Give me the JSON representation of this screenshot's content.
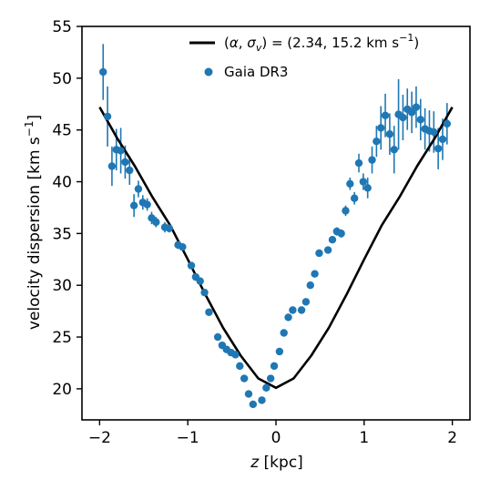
{
  "chart_data": {
    "type": "scatter",
    "xlabel_italic": "z",
    "xlabel_rest": " [kpc]",
    "ylabel_main": "velocity dispersion  [km s",
    "ylabel_sup": "−1",
    "ylabel_close": "]",
    "xlim": [
      -2.2,
      2.2
    ],
    "ylim": [
      17,
      55
    ],
    "xticks": [
      -2,
      -1,
      0,
      1,
      2
    ],
    "xtick_labels": [
      "−2",
      "−1",
      "0",
      "1",
      "2"
    ],
    "yticks": [
      20,
      25,
      30,
      35,
      40,
      45,
      50,
      55
    ],
    "ytick_labels": [
      "20",
      "25",
      "30",
      "35",
      "40",
      "45",
      "50",
      "55"
    ],
    "grid": false,
    "legend_position": "top-right",
    "colors": {
      "points": "#1f77b4",
      "model": "#000000"
    },
    "series": [
      {
        "name": "Gaia DR3",
        "kind": "points_with_errorbars",
        "x": [
          -1.96,
          -1.91,
          -1.86,
          -1.81,
          -1.76,
          -1.71,
          -1.66,
          -1.61,
          -1.56,
          -1.51,
          -1.46,
          -1.41,
          -1.36,
          -1.26,
          -1.21,
          -1.11,
          -1.06,
          -0.96,
          -0.91,
          -0.86,
          -0.81,
          -0.76,
          -0.66,
          -0.61,
          -0.56,
          -0.51,
          -0.46,
          -0.41,
          -0.36,
          -0.31,
          -0.26,
          -0.16,
          -0.11,
          -0.06,
          -0.02,
          0.04,
          0.09,
          0.14,
          0.19,
          0.29,
          0.34,
          0.39,
          0.44,
          0.49,
          0.59,
          0.64,
          0.69,
          0.74,
          0.79,
          0.84,
          0.89,
          0.94,
          0.99,
          1.04,
          1.09,
          1.14,
          1.19,
          1.24,
          1.29,
          1.34,
          1.39,
          1.44,
          1.49,
          1.54,
          1.59,
          1.64,
          1.69,
          1.74,
          1.79,
          1.84,
          1.89,
          1.94
        ],
        "y": [
          50.6,
          46.3,
          41.5,
          43.1,
          43.0,
          41.9,
          41.1,
          37.7,
          39.3,
          38.0,
          37.8,
          36.5,
          36.1,
          35.6,
          35.5,
          33.9,
          33.7,
          31.9,
          30.8,
          30.4,
          29.3,
          27.4,
          25.0,
          24.2,
          23.8,
          23.5,
          23.3,
          22.2,
          21.0,
          19.5,
          18.5,
          18.9,
          20.1,
          21.0,
          22.2,
          23.6,
          25.4,
          26.9,
          27.6,
          27.6,
          28.4,
          30.0,
          31.1,
          33.1,
          33.4,
          34.4,
          35.2,
          35.0,
          37.2,
          39.8,
          38.4,
          41.8,
          40.0,
          39.4,
          42.1,
          43.9,
          45.2,
          46.4,
          44.6,
          43.1,
          46.5,
          46.2,
          47.0,
          46.7,
          47.2,
          46.0,
          45.1,
          44.9,
          44.8,
          43.2,
          44.1,
          45.6
        ],
        "yerr": [
          2.7,
          2.9,
          1.9,
          2.0,
          2.2,
          1.6,
          1.4,
          1.1,
          0.8,
          0.7,
          0.6,
          0.6,
          0.5,
          0.5,
          0.4,
          0.4,
          0.3,
          0.3,
          0.3,
          0.3,
          0.3,
          0.3,
          0.3,
          0.3,
          0.3,
          0.3,
          0.3,
          0.3,
          0.3,
          0.3,
          0.3,
          0.3,
          0.3,
          0.3,
          0.3,
          0.3,
          0.3,
          0.3,
          0.3,
          0.3,
          0.3,
          0.3,
          0.3,
          0.3,
          0.3,
          0.3,
          0.4,
          0.4,
          0.5,
          0.6,
          0.6,
          0.9,
          0.8,
          1.0,
          1.3,
          1.5,
          2.1,
          2.1,
          2.0,
          2.3,
          3.4,
          2.2,
          2.0,
          2.0,
          2.0,
          2.0,
          2.0,
          2.0,
          2.0,
          2.0,
          2.0,
          2.0
        ]
      },
      {
        "name": "(α, σ_v) = (2.34, 15.2 km s⁻¹)",
        "kind": "line",
        "x": [
          -2.0,
          -1.8,
          -1.6,
          -1.4,
          -1.2,
          -1.0,
          -0.8,
          -0.6,
          -0.4,
          -0.2,
          0.0,
          0.2,
          0.4,
          0.6,
          0.8,
          1.0,
          1.2,
          1.4,
          1.6,
          1.8,
          2.0
        ],
        "y": [
          47.2,
          44.2,
          41.5,
          38.5,
          35.8,
          32.5,
          29.1,
          25.9,
          23.2,
          21.0,
          20.1,
          21.0,
          23.2,
          25.9,
          29.1,
          32.5,
          35.8,
          38.5,
          41.5,
          44.2,
          47.2
        ]
      }
    ],
    "legend": {
      "line_label_prefix": "(",
      "line_label_alpha": "α",
      "line_label_comma": ", ",
      "line_label_sigma": "σ",
      "line_label_sub": "v",
      "line_label_mid": ") = (2.34, 15.2 km s",
      "line_label_sup": "−1",
      "line_label_close": ")",
      "points_label": "Gaia DR3"
    }
  }
}
